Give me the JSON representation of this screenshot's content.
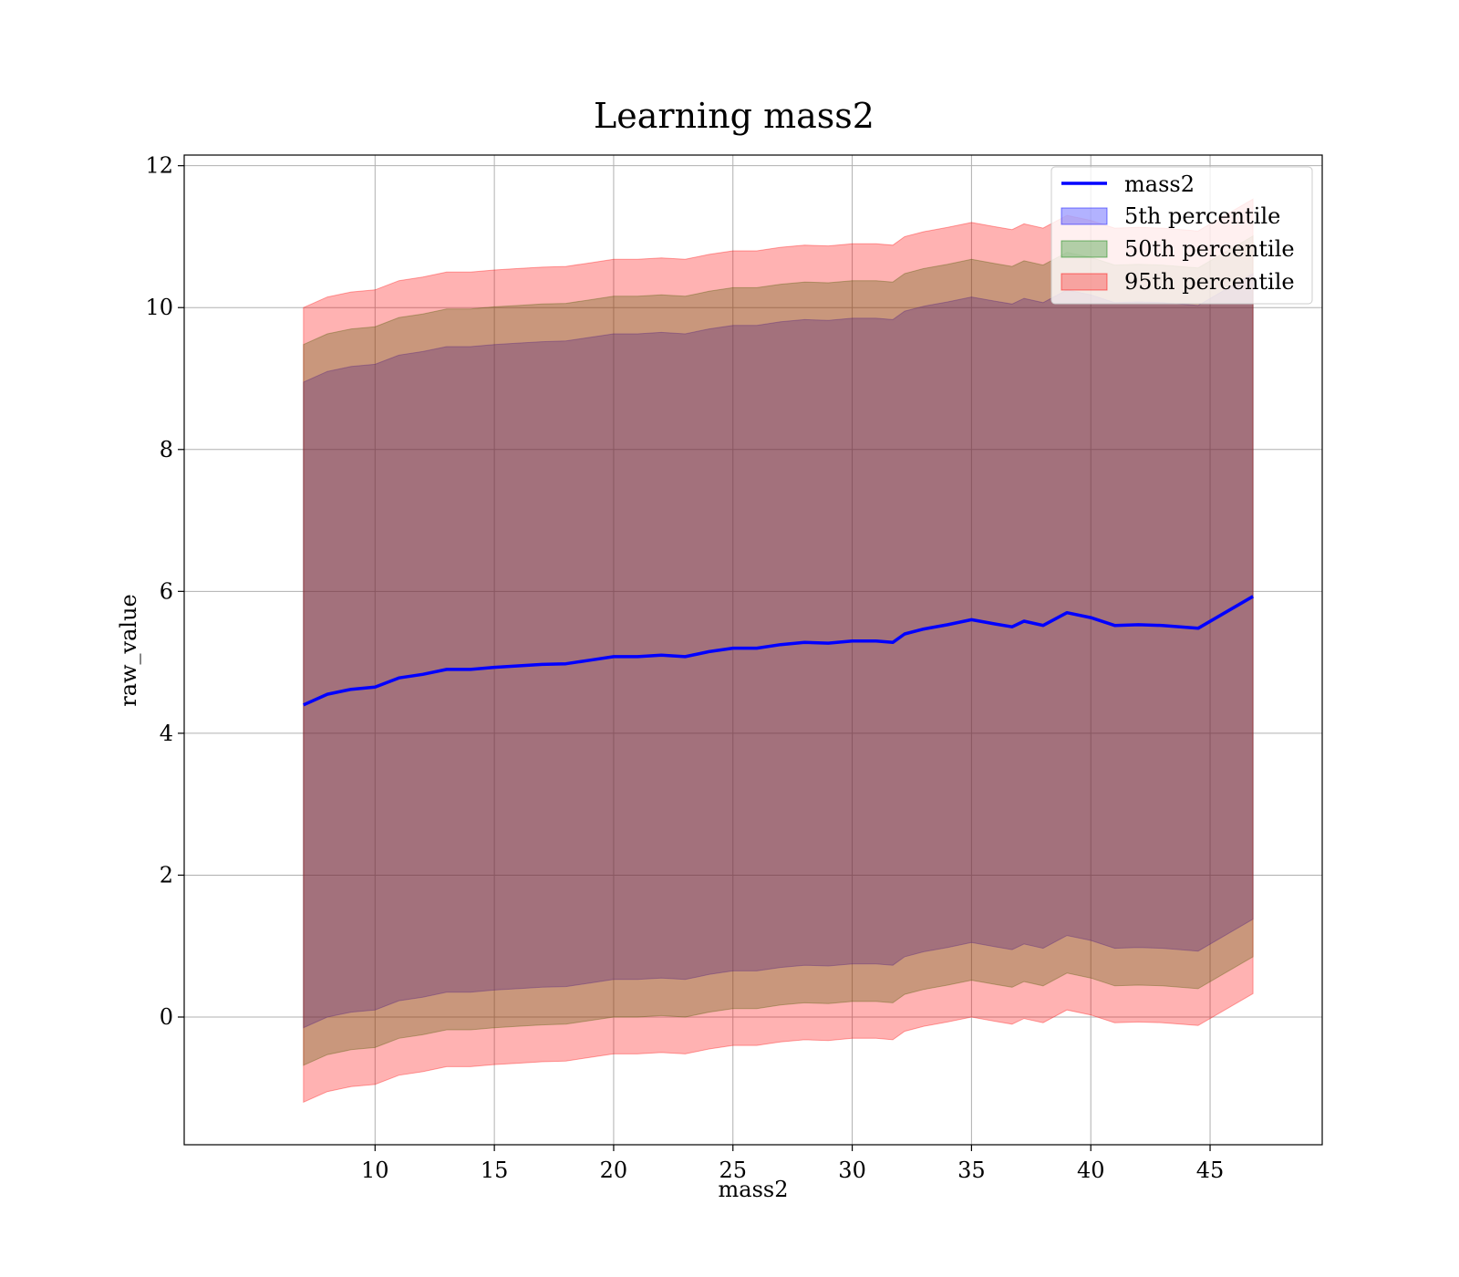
{
  "chart_data": {
    "type": "line",
    "title": "Learning mass2",
    "xlabel": "mass2",
    "ylabel": "raw_value",
    "xlim": [
      2,
      49.7
    ],
    "ylim": [
      -1.8,
      12.15
    ],
    "xticks": [
      10,
      15,
      20,
      25,
      30,
      35,
      40,
      45
    ],
    "yticks": [
      0,
      2,
      4,
      6,
      8,
      10,
      12
    ],
    "grid": true,
    "legend_position": "top-right",
    "line": {
      "name": "mass2",
      "color": "#0000ff",
      "x": [
        7.0,
        8.0,
        9.0,
        10.0,
        11.0,
        12.0,
        13.0,
        14.0,
        15.0,
        16.0,
        17.0,
        18.0,
        19.0,
        20.0,
        21.0,
        22.0,
        23.0,
        24.0,
        25.0,
        26.0,
        27.0,
        28.0,
        29.0,
        30.0,
        31.0,
        31.7,
        32.2,
        33.0,
        34.0,
        35.0,
        36.0,
        36.7,
        37.2,
        38.0,
        39.0,
        40.0,
        41.0,
        42.0,
        43.0,
        44.5,
        46.8
      ],
      "y": [
        4.4,
        4.55,
        4.62,
        4.65,
        4.78,
        4.83,
        4.9,
        4.9,
        4.93,
        4.95,
        4.97,
        4.98,
        5.03,
        5.08,
        5.08,
        5.1,
        5.08,
        5.15,
        5.2,
        5.2,
        5.25,
        5.28,
        5.27,
        5.3,
        5.3,
        5.28,
        5.4,
        5.47,
        5.53,
        5.6,
        5.54,
        5.5,
        5.58,
        5.52,
        5.7,
        5.63,
        5.52,
        5.53,
        5.52,
        5.48,
        5.93
      ]
    },
    "bands": [
      {
        "name": "5th percentile",
        "color": "#0000ff",
        "lower_offset_vs_line": [
          -4.55,
          -4.55,
          -4.55,
          -4.55,
          -4.55,
          -4.55,
          -4.55,
          -4.55,
          -4.55,
          -4.55,
          -4.55,
          -4.55,
          -4.55,
          -4.55,
          -4.55,
          -4.55,
          -4.55,
          -4.55,
          -4.55,
          -4.55,
          -4.55,
          -4.55,
          -4.55,
          -4.55,
          -4.55,
          -4.55,
          -4.55,
          -4.55,
          -4.55,
          -4.55,
          -4.55,
          -4.55,
          -4.55,
          -4.55,
          -4.55,
          -4.55,
          -4.55,
          -4.55,
          -4.55,
          -4.55,
          -4.55
        ],
        "upper_offset_vs_line": [
          4.55,
          4.55,
          4.55,
          4.55,
          4.55,
          4.55,
          4.55,
          4.55,
          4.55,
          4.55,
          4.55,
          4.55,
          4.55,
          4.55,
          4.55,
          4.55,
          4.55,
          4.55,
          4.55,
          4.55,
          4.55,
          4.55,
          4.55,
          4.55,
          4.55,
          4.55,
          4.55,
          4.55,
          4.55,
          4.55,
          4.55,
          4.55,
          4.55,
          4.55,
          4.55,
          4.55,
          4.55,
          4.55,
          4.55,
          4.55,
          4.55
        ]
      },
      {
        "name": "50th percentile",
        "color": "#008000",
        "lower_offset_vs_line": [
          -5.08,
          -5.08,
          -5.08,
          -5.08,
          -5.08,
          -5.08,
          -5.08,
          -5.08,
          -5.08,
          -5.08,
          -5.08,
          -5.08,
          -5.08,
          -5.08,
          -5.08,
          -5.08,
          -5.08,
          -5.08,
          -5.08,
          -5.08,
          -5.08,
          -5.08,
          -5.08,
          -5.08,
          -5.08,
          -5.08,
          -5.08,
          -5.08,
          -5.08,
          -5.08,
          -5.08,
          -5.08,
          -5.08,
          -5.08,
          -5.08,
          -5.08,
          -5.08,
          -5.08,
          -5.08,
          -5.08,
          -5.08
        ],
        "upper_offset_vs_line": [
          5.08,
          5.08,
          5.08,
          5.08,
          5.08,
          5.08,
          5.08,
          5.08,
          5.08,
          5.08,
          5.08,
          5.08,
          5.08,
          5.08,
          5.08,
          5.08,
          5.08,
          5.08,
          5.08,
          5.08,
          5.08,
          5.08,
          5.08,
          5.08,
          5.08,
          5.08,
          5.08,
          5.08,
          5.08,
          5.08,
          5.08,
          5.08,
          5.08,
          5.08,
          5.08,
          5.08,
          5.08,
          5.08,
          5.08,
          5.08,
          5.08
        ]
      },
      {
        "name": "95th percentile",
        "color": "#ff0000",
        "lower_offset_vs_line": [
          -5.6,
          -5.6,
          -5.6,
          -5.6,
          -5.6,
          -5.6,
          -5.6,
          -5.6,
          -5.6,
          -5.6,
          -5.6,
          -5.6,
          -5.6,
          -5.6,
          -5.6,
          -5.6,
          -5.6,
          -5.6,
          -5.6,
          -5.6,
          -5.6,
          -5.6,
          -5.6,
          -5.6,
          -5.6,
          -5.6,
          -5.6,
          -5.6,
          -5.6,
          -5.6,
          -5.6,
          -5.6,
          -5.6,
          -5.6,
          -5.6,
          -5.6,
          -5.6,
          -5.6,
          -5.6,
          -5.6,
          -5.6
        ],
        "upper_offset_vs_line": [
          5.6,
          5.6,
          5.6,
          5.6,
          5.6,
          5.6,
          5.6,
          5.6,
          5.6,
          5.6,
          5.6,
          5.6,
          5.6,
          5.6,
          5.6,
          5.6,
          5.6,
          5.6,
          5.6,
          5.6,
          5.6,
          5.6,
          5.6,
          5.6,
          5.6,
          5.6,
          5.6,
          5.6,
          5.6,
          5.6,
          5.6,
          5.6,
          5.6,
          5.6,
          5.6,
          5.6,
          5.6,
          5.6,
          5.6,
          5.6,
          5.6
        ]
      }
    ]
  }
}
